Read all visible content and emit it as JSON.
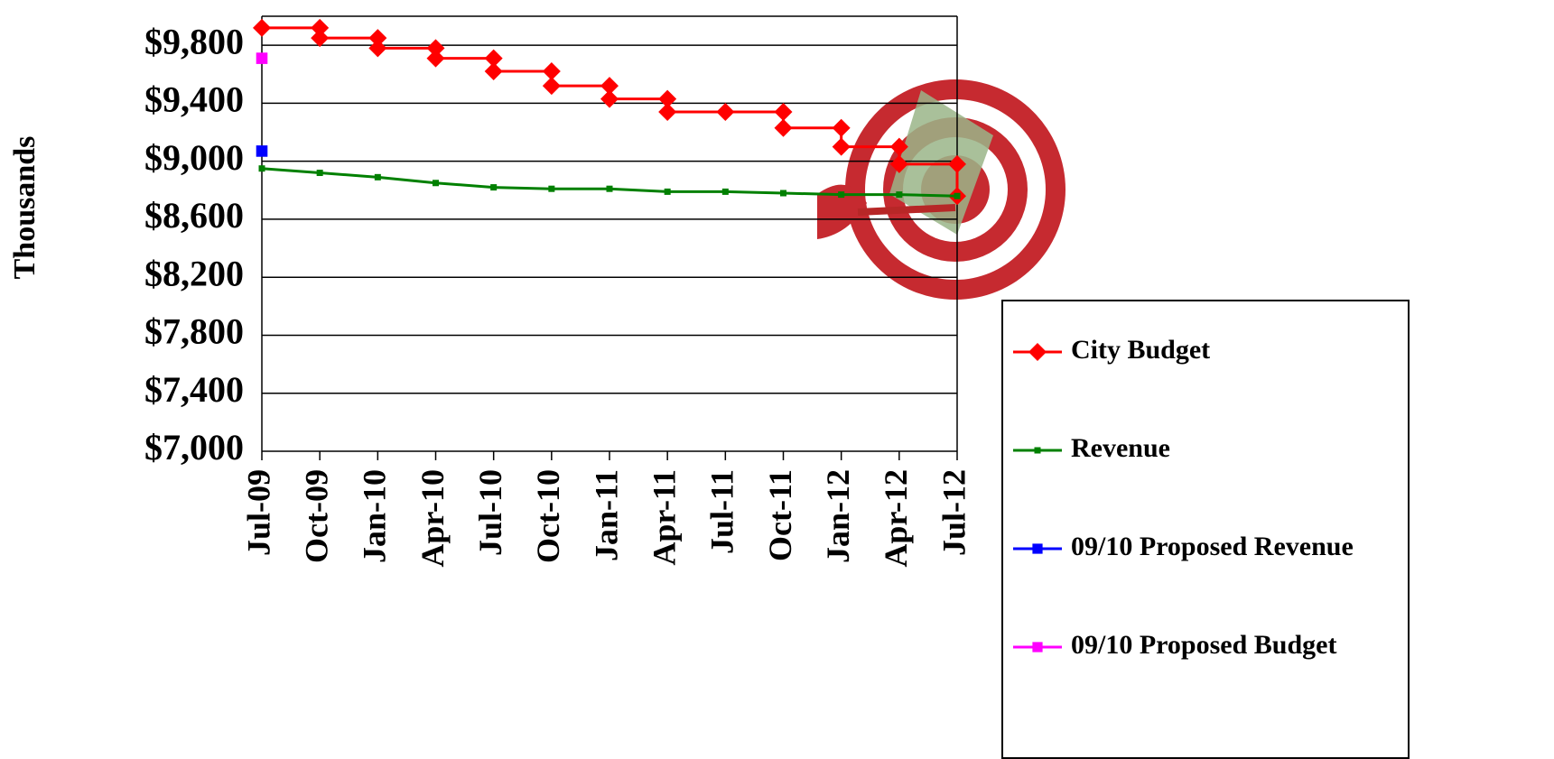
{
  "chart_data": {
    "type": "line",
    "y_label": "Thousands",
    "categories": [
      "Jul-09",
      "Oct-09",
      "Jan-10",
      "Apr-10",
      "Jul-10",
      "Oct-10",
      "Jan-11",
      "Apr-11",
      "Jul-11",
      "Oct-11",
      "Jan-12",
      "Apr-12",
      "Jul-12"
    ],
    "series": [
      {
        "name": "City Budget",
        "color": "#ff0000",
        "marker": "diamond",
        "step": true,
        "values": [
          9920,
          9850,
          9780,
          9710,
          9620,
          9520,
          9430,
          9340,
          9340,
          9230,
          9100,
          8980,
          8760
        ]
      },
      {
        "name": "Revenue",
        "color": "#008000",
        "marker": "square",
        "values": [
          8950,
          8920,
          8890,
          8850,
          8820,
          8810,
          8810,
          8790,
          8790,
          8780,
          8770,
          8770,
          8760
        ]
      },
      {
        "name": "09/10 Proposed Revenue",
        "color": "#0000ff",
        "marker": "square",
        "values": [
          9070,
          null,
          null,
          null,
          null,
          null,
          null,
          null,
          null,
          null,
          null,
          null,
          null
        ]
      },
      {
        "name": "09/10 Proposed Budget",
        "color": "#ff00ff",
        "marker": "square",
        "values": [
          9710,
          null,
          null,
          null,
          null,
          null,
          null,
          null,
          null,
          null,
          null,
          null,
          null
        ]
      }
    ],
    "ylim": [
      7000,
      10000
    ],
    "yticks": [
      {
        "value": 7000,
        "label": "$7,000"
      },
      {
        "value": 7400,
        "label": "$7,400"
      },
      {
        "value": 7800,
        "label": "$7,800"
      },
      {
        "value": 8200,
        "label": "$8,200"
      },
      {
        "value": 8600,
        "label": "$8,600"
      },
      {
        "value": 9000,
        "label": "$9,000"
      },
      {
        "value": 9400,
        "label": "$9,400"
      },
      {
        "value": 9800,
        "label": "$9,800"
      }
    ],
    "grid": true,
    "legend": "right"
  }
}
